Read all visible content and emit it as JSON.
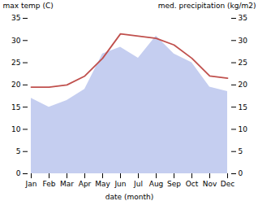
{
  "chart_data": {
    "type": "area_line",
    "xlabel": "date (month)",
    "ylabel": "max temp (C)",
    "y2label": "med. precipitation (kg/m2)",
    "categories": [
      "Jan",
      "Feb",
      "Mar",
      "Apr",
      "May",
      "Jun",
      "Jul",
      "Aug",
      "Sep",
      "Oct",
      "Nov",
      "Dec"
    ],
    "series": [
      {
        "type": "area",
        "color": "#c5cef0",
        "values": [
          17.0,
          15.0,
          16.5,
          19.0,
          27.0,
          28.5,
          26.0,
          31.0,
          27.0,
          25.0,
          19.5,
          18.5
        ]
      },
      {
        "type": "line",
        "color": "#c0504d",
        "values": [
          19.5,
          19.5,
          20.0,
          22.0,
          26.0,
          31.5,
          31.0,
          30.5,
          29.0,
          26.0,
          22.0,
          21.5
        ]
      }
    ],
    "ylim": [
      0,
      35
    ],
    "yticks": [
      0,
      5,
      10,
      15,
      20,
      25,
      30,
      35
    ],
    "y2lim": [
      0,
      35
    ],
    "y2ticks": [
      0,
      5,
      10,
      15,
      20,
      25,
      30,
      35
    ],
    "grid": false
  }
}
